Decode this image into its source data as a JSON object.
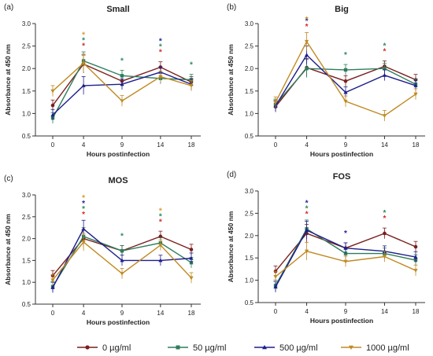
{
  "colors": {
    "0": "#7a1f1f",
    "50": "#2e7d5b",
    "500": "#1e1e8c",
    "1000": "#c08a22"
  },
  "star_colors": {
    "0": "#d42a2a",
    "50": "#2e8a5b",
    "500": "#23239a",
    "1000": "#d89a2a"
  },
  "legend": {
    "items": [
      {
        "key": "0",
        "label": "0 µg/ml"
      },
      {
        "key": "50",
        "label": "50 µg/ml"
      },
      {
        "key": "500",
        "label": "500 µg/ml"
      },
      {
        "key": "1000",
        "label": "1000 µg/ml"
      }
    ]
  },
  "chart_data": [
    {
      "type": "line",
      "panel": "(a)",
      "title": "Small",
      "xlabel": "Hours postinfection",
      "ylabel": "Absorbance at 450 nm",
      "x": [
        0,
        4,
        9,
        14,
        18
      ],
      "ylim": [
        0.5,
        3.0
      ],
      "yticks": [
        "0.5",
        "1.0",
        "1.5",
        "2.0",
        "2.5",
        "3.0"
      ],
      "series": [
        {
          "key": "0",
          "values": [
            1.18,
            2.1,
            1.72,
            2.03,
            1.7
          ]
        },
        {
          "key": "50",
          "values": [
            0.9,
            2.17,
            1.84,
            1.78,
            1.75
          ]
        },
        {
          "key": "500",
          "values": [
            0.97,
            1.62,
            1.65,
            1.92,
            1.65
          ]
        },
        {
          "key": "1000",
          "values": [
            1.5,
            2.12,
            1.28,
            1.82,
            1.62
          ]
        }
      ],
      "stars": [
        {
          "x": 4,
          "keys": [
            "0",
            "50",
            "1000"
          ]
        },
        {
          "x": 9,
          "keys": [
            "50"
          ]
        },
        {
          "x": 14,
          "keys": [
            "0",
            "50",
            "500"
          ]
        },
        {
          "x": 18,
          "keys": [
            "50"
          ]
        }
      ]
    },
    {
      "type": "line",
      "panel": "(b)",
      "title": "Big",
      "xlabel": "Hours postinfection",
      "ylabel": "Absorbance at 450 nm",
      "x": [
        0,
        4,
        9,
        14,
        18
      ],
      "ylim": [
        0.5,
        3.0
      ],
      "yticks": [
        "0.5",
        "1.0",
        "1.5",
        "2.0",
        "2.5",
        "3.0"
      ],
      "series": [
        {
          "key": "0",
          "values": [
            1.15,
            2.02,
            1.72,
            2.05,
            1.75
          ]
        },
        {
          "key": "50",
          "values": [
            1.2,
            2.0,
            1.97,
            2.0,
            1.65
          ]
        },
        {
          "key": "500",
          "values": [
            1.17,
            2.3,
            1.47,
            1.85,
            1.62
          ]
        },
        {
          "key": "1000",
          "values": [
            1.25,
            2.6,
            1.27,
            0.95,
            1.43
          ]
        }
      ],
      "stars": [
        {
          "x": 4,
          "keys": [
            "0",
            "500",
            "50",
            "1000"
          ]
        },
        {
          "x": 9,
          "keys": [
            "50"
          ]
        },
        {
          "x": 14,
          "keys": [
            "0",
            "50"
          ]
        }
      ]
    },
    {
      "type": "line",
      "panel": "(c)",
      "title": "MOS",
      "xlabel": "Hours postinfection",
      "ylabel": "Absorbance at 450 nm",
      "x": [
        0,
        4,
        9,
        14,
        18
      ],
      "ylim": [
        0.5,
        3.0
      ],
      "yticks": [
        "0.5",
        "1.0",
        "1.5",
        "2.0",
        "2.5",
        "3.0"
      ],
      "series": [
        {
          "key": "0",
          "values": [
            1.15,
            2.0,
            1.72,
            2.05,
            1.75
          ]
        },
        {
          "key": "50",
          "values": [
            0.9,
            2.05,
            1.72,
            1.9,
            1.45
          ]
        },
        {
          "key": "500",
          "values": [
            0.88,
            2.22,
            1.5,
            1.5,
            1.55
          ]
        },
        {
          "key": "1000",
          "values": [
            1.05,
            1.92,
            1.2,
            1.85,
            1.1
          ]
        }
      ],
      "stars": [
        {
          "x": 4,
          "keys": [
            "0",
            "50",
            "500",
            "1000"
          ]
        },
        {
          "x": 9,
          "keys": [
            "50"
          ]
        },
        {
          "x": 14,
          "keys": [
            "0",
            "50",
            "1000"
          ]
        }
      ]
    },
    {
      "type": "line",
      "panel": "(d)",
      "title": "FOS",
      "xlabel": "Hours postinfection",
      "ylabel": "Absorbance at 450 nm",
      "x": [
        0,
        4,
        9,
        14,
        18
      ],
      "ylim": [
        0.5,
        3.0
      ],
      "yticks": [
        "0.5",
        "1.0",
        "1.5",
        "2.0",
        "2.5",
        "3.0"
      ],
      "series": [
        {
          "key": "0",
          "values": [
            1.2,
            2.05,
            1.72,
            2.05,
            1.75
          ]
        },
        {
          "key": "50",
          "values": [
            0.88,
            2.15,
            1.6,
            1.6,
            1.45
          ]
        },
        {
          "key": "500",
          "values": [
            0.85,
            2.12,
            1.72,
            1.65,
            1.52
          ]
        },
        {
          "key": "1000",
          "values": [
            1.08,
            1.65,
            1.42,
            1.53,
            1.22
          ]
        }
      ],
      "stars": [
        {
          "x": 4,
          "keys": [
            "0",
            "50",
            "500"
          ]
        },
        {
          "x": 9,
          "keys": [
            "500"
          ]
        },
        {
          "x": 14,
          "keys": [
            "0",
            "50"
          ]
        }
      ]
    }
  ]
}
